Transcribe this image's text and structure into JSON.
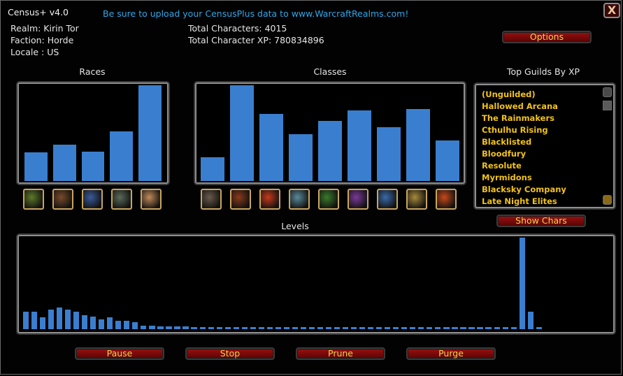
{
  "window": {
    "title": "Census+ v4.0",
    "banner": "Be sure to upload your CensusPlus data to www.WarcraftRealms.com!",
    "close_glyph": "X"
  },
  "info": {
    "realm": "Realm: Kirin Tor",
    "faction": "Faction: Horde",
    "locale": "Locale : US",
    "total_characters": "Total Characters: 4015",
    "total_xp": "Total Character XP: 780834896"
  },
  "buttons": {
    "options": "Options",
    "show_chars": "Show Chars",
    "pause": "Pause",
    "stop": "Stop",
    "prune": "Prune",
    "purge": "Purge"
  },
  "races": {
    "heading": "Races",
    "relative_values": [
      0.3,
      0.38,
      0.31,
      0.52,
      1.0
    ],
    "icons": [
      {
        "name": "orc-race-icon",
        "color": "#5e7a2a"
      },
      {
        "name": "tauren-race-icon",
        "color": "#7a4a2a"
      },
      {
        "name": "troll-race-icon",
        "color": "#3a5a9a"
      },
      {
        "name": "undead-race-icon",
        "color": "#5a6a5a"
      },
      {
        "name": "blood-elf-race-icon",
        "color": "#c28a5a"
      }
    ]
  },
  "classes": {
    "heading": "Classes",
    "relative_values": [
      0.25,
      1.0,
      0.7,
      0.49,
      0.63,
      0.74,
      0.56,
      0.75,
      0.42
    ],
    "icons": [
      {
        "name": "warrior-class-icon",
        "color": "#6a5a4a"
      },
      {
        "name": "hunter-class-icon",
        "color": "#8a3a1a"
      },
      {
        "name": "mage-class-icon",
        "color": "#c83a1a"
      },
      {
        "name": "rogue-class-icon",
        "color": "#5a8a9a"
      },
      {
        "name": "priest-class-icon",
        "color": "#3a7a2a"
      },
      {
        "name": "warlock-class-icon",
        "color": "#7a3a9a"
      },
      {
        "name": "shaman-class-icon",
        "color": "#3a6aaa"
      },
      {
        "name": "paladin-class-icon",
        "color": "#a88a3a"
      },
      {
        "name": "druid-class-icon",
        "color": "#c8481a"
      }
    ]
  },
  "guilds": {
    "heading": "Top Guilds By XP",
    "items": [
      "(Unguilded)",
      "Hallowed Arcana",
      "The Rainmakers",
      "Cthulhu Rising",
      "Blacklisted",
      "Bloodfury",
      "Resolute",
      "Myrmidons",
      "Blacksky Company",
      "Late Night Elites"
    ]
  },
  "levels": {
    "heading": "Levels",
    "relative_values": [
      0.19,
      0.19,
      0.13,
      0.21,
      0.24,
      0.21,
      0.19,
      0.15,
      0.14,
      0.11,
      0.13,
      0.09,
      0.09,
      0.08,
      0.04,
      0.04,
      0.03,
      0.03,
      0.03,
      0.03,
      0.02,
      0.02,
      0.02,
      0.02,
      0.02,
      0.02,
      0.02,
      0.02,
      0.02,
      0.02,
      0.02,
      0.02,
      0.02,
      0.02,
      0.02,
      0.02,
      0.02,
      0.02,
      0.02,
      0.02,
      0.02,
      0.02,
      0.02,
      0.02,
      0.02,
      0.02,
      0.02,
      0.02,
      0.02,
      0.02,
      0.02,
      0.02,
      0.02,
      0.02,
      0.02,
      0.02,
      0.02,
      0.02,
      0.02,
      1.0,
      0.19,
      0.02,
      0.0,
      0.0,
      0.0,
      0.0,
      0.0,
      0.0,
      0.0,
      0.0
    ],
    "bar_color": "#3a7fcf"
  }
}
